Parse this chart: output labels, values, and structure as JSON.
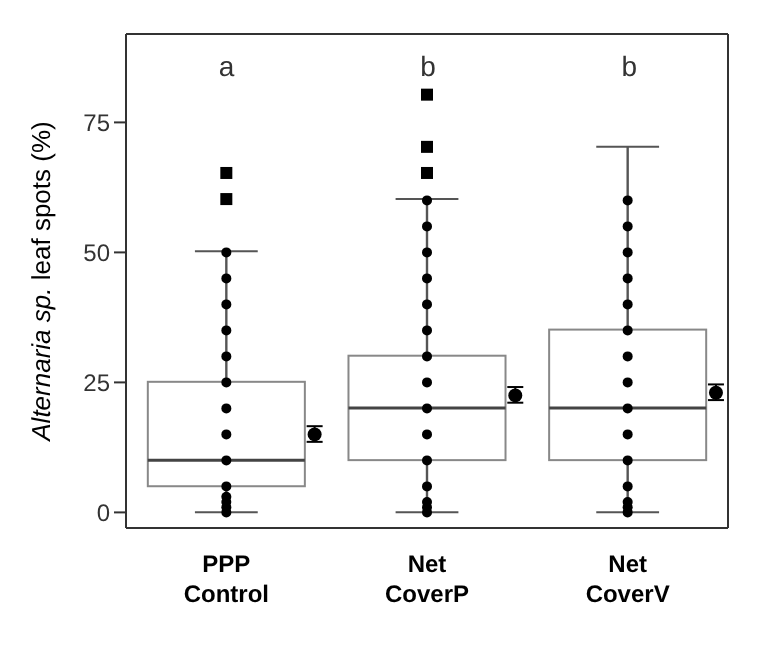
{
  "chart_data": {
    "type": "box",
    "ylabel": "Alternaria sp. leaf spots (%)",
    "categories": [
      "PPP Control",
      "Net CoverP",
      "Net CoverV"
    ],
    "boxes": [
      {
        "low": 0,
        "q1": 5,
        "median": 10,
        "q3": 25,
        "high": 50,
        "outliers": [
          60,
          65
        ]
      },
      {
        "low": 0,
        "q1": 10,
        "median": 20,
        "q3": 30,
        "high": 60,
        "outliers": [
          65,
          70,
          80
        ]
      },
      {
        "low": 0,
        "q1": 10,
        "median": 20,
        "q3": 35,
        "high": 70
      }
    ],
    "series": [
      {
        "type": "scatter",
        "color": "#000000",
        "marker": "circle",
        "x": [
          "PPP Control",
          "PPP Control",
          "PPP Control",
          "PPP Control",
          "PPP Control",
          "PPP Control",
          "PPP Control",
          "PPP Control",
          "PPP Control",
          "PPP Control",
          "PPP Control",
          "PPP Control",
          "PPP Control",
          "PPP Control",
          "Net CoverP",
          "Net CoverP",
          "Net CoverP",
          "Net CoverP",
          "Net CoverP",
          "Net CoverP",
          "Net CoverP",
          "Net CoverP",
          "Net CoverP",
          "Net CoverP",
          "Net CoverP",
          "Net CoverP",
          "Net CoverP",
          "Net CoverP",
          "Net CoverP",
          "Net CoverV",
          "Net CoverV",
          "Net CoverV",
          "Net CoverV",
          "Net CoverV",
          "Net CoverV",
          "Net CoverV",
          "Net CoverV",
          "Net CoverV",
          "Net CoverV",
          "Net CoverV",
          "Net CoverV",
          "Net CoverV",
          "Net CoverV",
          "Net CoverV"
        ],
        "values": [
          0,
          1,
          2,
          3,
          5,
          10,
          15,
          20,
          25,
          30,
          35,
          40,
          45,
          50,
          0,
          1,
          2,
          5,
          10,
          15,
          20,
          25,
          30,
          35,
          40,
          45,
          50,
          55,
          60,
          0,
          1,
          2,
          5,
          10,
          15,
          20,
          25,
          30,
          35,
          40,
          45,
          50,
          55,
          60
        ]
      },
      {
        "type": "scatter",
        "color": "#000000",
        "marker": "circle",
        "x": [
          "PPP Control",
          "Net CoverP",
          "Net CoverV"
        ],
        "values": [
          15,
          22.5,
          23
        ],
        "errors": [
          1.5,
          1.5,
          1.5
        ]
      }
    ],
    "annotations": [
      "a",
      "b",
      "b"
    ],
    "ylim": [
      -3,
      92
    ],
    "yticks": [
      0,
      25,
      50,
      75
    ]
  }
}
